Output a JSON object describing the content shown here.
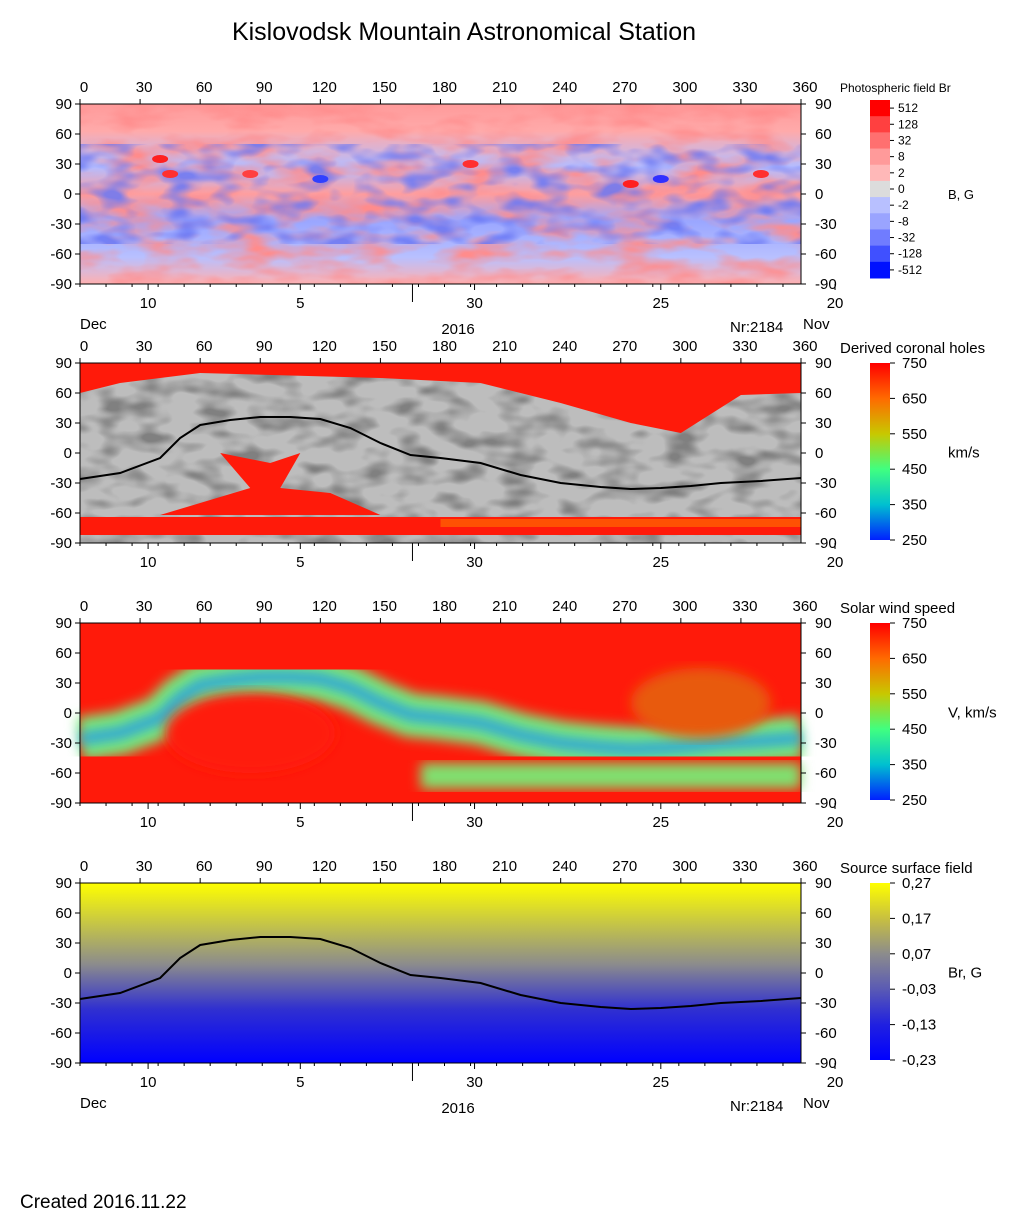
{
  "title": "Kislovodsk Mountain Astronomical Station",
  "created_label": "Created  2016.11.22",
  "chart_data": [
    {
      "type": "heatmap",
      "label": "Photospheric field Br",
      "x_top_ticks": [
        0,
        30,
        60,
        90,
        120,
        150,
        180,
        210,
        240,
        270,
        300,
        330,
        360
      ],
      "xlim": [
        0,
        360
      ],
      "y_ticks": [
        90,
        60,
        30,
        0,
        -30,
        -60,
        -90
      ],
      "ylim": [
        -90,
        90
      ],
      "date_ticks": [
        "10",
        "5",
        "30",
        "25",
        "20"
      ],
      "left_month": "Dec",
      "right_month": "Nov",
      "year": "2016",
      "rotation": "Nr:2184",
      "colorbar": {
        "ticks": [
          "512",
          "128",
          "32",
          "8",
          "2",
          "0",
          "-2",
          "-8",
          "-32",
          "-128",
          "-512"
        ],
        "unit": "B, G",
        "colors": [
          "#ff0000",
          "#ff4040",
          "#ff7070",
          "#ff9a9a",
          "#ffb8b8",
          "#dcdcdc",
          "#b8c0ff",
          "#9aa4ff",
          "#707cff",
          "#4050ff",
          "#0010ff"
        ]
      }
    },
    {
      "type": "heatmap",
      "label": "Derived coronal holes",
      "x_top_ticks": [
        0,
        30,
        60,
        90,
        120,
        150,
        180,
        210,
        240,
        270,
        300,
        330,
        360
      ],
      "xlim": [
        0,
        360
      ],
      "y_ticks": [
        90,
        60,
        30,
        0,
        -30,
        -60,
        -90
      ],
      "ylim": [
        -90,
        90
      ],
      "date_ticks": [
        "10",
        "5",
        "30",
        "25",
        "20"
      ],
      "colorbar": {
        "ticks": [
          "750",
          "650",
          "550",
          "450",
          "350",
          "250"
        ],
        "unit": "km/s",
        "colors": [
          "#ff0000",
          "#ff6a00",
          "#c8c800",
          "#40ff80",
          "#00c0d0",
          "#0020ff"
        ]
      }
    },
    {
      "type": "heatmap",
      "label": "Solar wind speed",
      "x_top_ticks": [
        0,
        30,
        60,
        90,
        120,
        150,
        180,
        210,
        240,
        270,
        300,
        330,
        360
      ],
      "xlim": [
        0,
        360
      ],
      "y_ticks": [
        90,
        60,
        30,
        0,
        -30,
        -60,
        -90
      ],
      "ylim": [
        -90,
        90
      ],
      "date_ticks": [
        "10",
        "5",
        "30",
        "25",
        "20"
      ],
      "colorbar": {
        "ticks": [
          "750",
          "650",
          "550",
          "450",
          "350",
          "250"
        ],
        "unit": "V, km/s",
        "colors": [
          "#ff0000",
          "#ff6a00",
          "#c8c800",
          "#40ff80",
          "#00c0d0",
          "#0020ff"
        ]
      }
    },
    {
      "type": "heatmap",
      "label": "Source surface field",
      "x_top_ticks": [
        0,
        30,
        60,
        90,
        120,
        150,
        180,
        210,
        240,
        270,
        300,
        330,
        360
      ],
      "xlim": [
        0,
        360
      ],
      "y_ticks": [
        90,
        60,
        30,
        0,
        -30,
        -60,
        -90
      ],
      "ylim": [
        -90,
        90
      ],
      "date_ticks": [
        "10",
        "5",
        "30",
        "25",
        "20"
      ],
      "left_month": "Dec",
      "right_month": "Nov",
      "year": "2016",
      "rotation": "Nr:2184",
      "colorbar": {
        "ticks": [
          "0,27",
          "0,17",
          "0,07",
          "-0,03",
          "-0,13",
          "-0,23"
        ],
        "unit": "Br, G",
        "colors": [
          "#ffff00",
          "#c8c040",
          "#8c8c8c",
          "#5a5ab4",
          "#2020e0",
          "#0000ff"
        ]
      }
    }
  ],
  "neutral_line": {
    "lon": [
      0,
      20,
      40,
      50,
      60,
      75,
      90,
      105,
      120,
      135,
      150,
      165,
      180,
      200,
      220,
      240,
      260,
      275,
      290,
      305,
      320,
      340,
      360
    ],
    "lat": [
      -26,
      -20,
      -5,
      15,
      28,
      33,
      36,
      36,
      34,
      25,
      10,
      -2,
      -5,
      -10,
      -22,
      -30,
      -34,
      -36,
      -35,
      -33,
      -30,
      -28,
      -25
    ]
  }
}
